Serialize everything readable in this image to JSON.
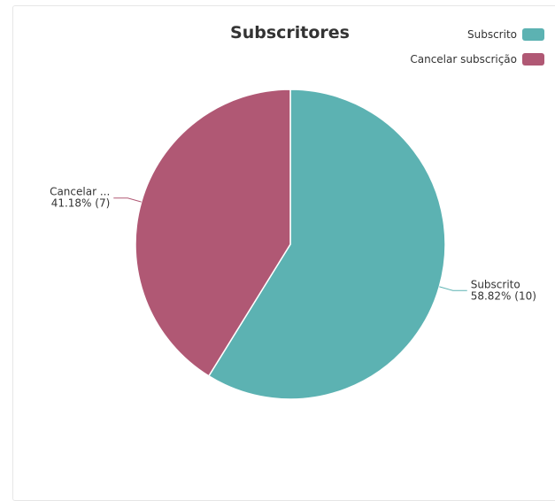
{
  "chart_data": {
    "type": "pie",
    "title": "Subscritores",
    "legend_position": "top-right",
    "slices": [
      {
        "name": "Subscrito",
        "label_name": "Subscrito",
        "value": 10,
        "percent_label": "58.82% (10)",
        "color": "#5cb2b2"
      },
      {
        "name": "Cancelar subscrição",
        "label_name": "Cancelar ...",
        "value": 7,
        "percent_label": "41.18% (7)",
        "color": "#b05874"
      }
    ]
  }
}
